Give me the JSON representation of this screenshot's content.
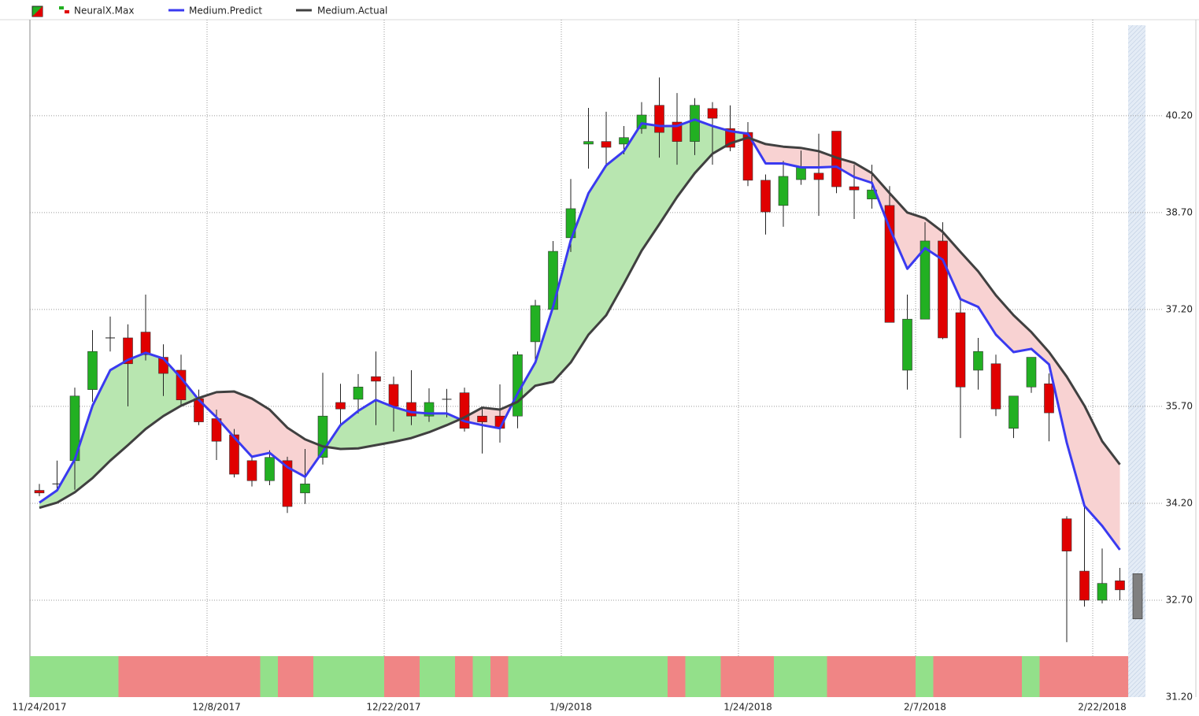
{
  "chart_data": {
    "type": "candlestick",
    "categories": [
      "11/24/2017",
      null,
      null,
      null,
      null,
      null,
      null,
      null,
      null,
      null,
      "12/8/2017",
      null,
      null,
      null,
      null,
      null,
      null,
      null,
      null,
      null,
      "12/22/2017",
      null,
      null,
      null,
      null,
      null,
      null,
      null,
      null,
      null,
      "1/9/2018",
      null,
      null,
      null,
      null,
      null,
      null,
      null,
      null,
      null,
      "1/24/2018",
      null,
      null,
      null,
      null,
      null,
      null,
      null,
      null,
      null,
      "2/7/2018",
      null,
      null,
      null,
      null,
      null,
      null,
      null,
      null,
      null,
      "2/22/2018",
      null,
      null
    ],
    "ylim": [
      31.2,
      41.6
    ],
    "yticks": [
      {
        "value": 31.2,
        "label": "31.20"
      },
      {
        "value": 32.7,
        "label": "32.70"
      },
      {
        "value": 34.2,
        "label": "34.20"
      },
      {
        "value": 35.7,
        "label": "35.70"
      },
      {
        "value": 37.2,
        "label": "37.20"
      },
      {
        "value": 38.7,
        "label": "38.70"
      },
      {
        "value": 40.2,
        "label": "40.20"
      }
    ],
    "grid": true,
    "series": [
      {
        "name": "NeuralX.Max",
        "up_color": "#22b022",
        "down_color": "#e00000",
        "forecast_color": "#808080",
        "open": [
          34.4,
          34.5,
          34.86,
          35.96,
          36.76,
          36.76,
          36.85,
          36.46,
          36.26,
          35.82,
          35.51,
          35.26,
          34.86,
          34.55,
          34.86,
          34.36,
          34.91,
          35.76,
          35.81,
          36.16,
          36.04,
          35.76,
          35.55,
          35.81,
          35.91,
          35.55,
          35.55,
          35.55,
          36.7,
          37.2,
          38.31,
          39.76,
          39.8,
          39.76,
          40.0,
          40.36,
          40.1,
          39.8,
          40.31,
          40.0,
          39.94,
          39.2,
          38.81,
          39.21,
          39.31,
          39.96,
          39.1,
          38.91,
          38.81,
          36.26,
          37.05,
          38.26,
          37.15,
          36.26,
          36.36,
          35.36,
          36.0,
          36.05,
          33.96,
          33.15,
          32.7,
          33.0,
          33.11
        ],
        "high": [
          34.5,
          34.86,
          35.99,
          36.88,
          37.09,
          36.97,
          37.43,
          36.66,
          36.5,
          35.96,
          35.65,
          35.35,
          34.92,
          35.02,
          34.92,
          35.04,
          36.22,
          36.05,
          36.2,
          36.55,
          36.16,
          36.26,
          35.98,
          35.97,
          35.99,
          35.68,
          36.04,
          36.55,
          37.35,
          38.26,
          39.22,
          40.32,
          40.26,
          40.04,
          40.41,
          40.79,
          40.55,
          40.47,
          40.41,
          40.36,
          40.1,
          39.29,
          39.5,
          39.66,
          39.92,
          39.96,
          39.44,
          39.44,
          39.11,
          37.43,
          38.55,
          38.55,
          37.36,
          36.76,
          36.5,
          35.86,
          36.46,
          36.21,
          34.0,
          34.2,
          33.5,
          33.2,
          33.11
        ],
        "low": [
          34.31,
          34.41,
          34.41,
          35.77,
          36.55,
          35.7,
          36.41,
          35.86,
          35.7,
          35.41,
          34.87,
          34.6,
          34.46,
          34.48,
          34.05,
          34.19,
          34.8,
          35.41,
          35.59,
          35.41,
          35.31,
          35.41,
          35.46,
          35.53,
          35.31,
          34.97,
          35.14,
          35.36,
          36.41,
          37.2,
          38.09,
          39.38,
          39.41,
          39.6,
          39.92,
          39.55,
          39.44,
          39.59,
          39.44,
          39.65,
          39.11,
          38.36,
          38.48,
          39.13,
          38.65,
          39.0,
          38.6,
          38.76,
          37.0,
          35.96,
          37.05,
          36.74,
          35.21,
          35.96,
          35.55,
          35.21,
          35.91,
          35.16,
          32.05,
          32.6,
          32.65,
          32.7,
          32.41
        ],
        "close": [
          34.36,
          34.5,
          35.86,
          36.55,
          36.76,
          36.36,
          36.5,
          36.21,
          35.8,
          35.46,
          35.16,
          34.65,
          34.55,
          34.91,
          34.15,
          34.5,
          35.55,
          35.66,
          36.0,
          36.09,
          35.7,
          35.55,
          35.76,
          35.81,
          35.36,
          35.46,
          35.36,
          36.5,
          37.26,
          38.1,
          38.76,
          39.8,
          39.71,
          39.86,
          40.21,
          39.94,
          39.8,
          40.36,
          40.16,
          39.71,
          39.2,
          38.71,
          39.26,
          39.41,
          39.21,
          39.1,
          39.05,
          39.05,
          37.0,
          37.05,
          38.26,
          36.76,
          36.0,
          36.55,
          35.66,
          35.86,
          36.46,
          35.6,
          33.46,
          32.7,
          32.96,
          32.86,
          32.41
        ]
      },
      {
        "name": "Medium.Predict",
        "color": "#3a3af0",
        "values": [
          34.21,
          34.4,
          34.88,
          35.71,
          36.26,
          36.42,
          36.53,
          36.44,
          36.14,
          35.8,
          35.53,
          35.22,
          34.92,
          34.98,
          34.76,
          34.61,
          35.0,
          35.41,
          35.63,
          35.8,
          35.69,
          35.61,
          35.59,
          35.59,
          35.47,
          35.41,
          35.36,
          35.9,
          36.38,
          37.24,
          38.27,
          39.0,
          39.43,
          39.65,
          40.08,
          40.04,
          40.04,
          40.14,
          40.04,
          39.96,
          39.92,
          39.46,
          39.46,
          39.4,
          39.4,
          39.41,
          39.25,
          39.16,
          38.46,
          37.83,
          38.15,
          37.97,
          37.36,
          37.24,
          36.81,
          36.54,
          36.59,
          36.35,
          35.14,
          34.16,
          33.85,
          33.48,
          null
        ]
      },
      {
        "name": "Medium.Actual",
        "color": "#404040",
        "values": [
          34.13,
          34.21,
          34.37,
          34.59,
          34.86,
          35.1,
          35.35,
          35.55,
          35.71,
          35.83,
          35.92,
          35.93,
          35.82,
          35.65,
          35.37,
          35.19,
          35.08,
          35.04,
          35.05,
          35.1,
          35.15,
          35.21,
          35.3,
          35.41,
          35.53,
          35.68,
          35.65,
          35.77,
          36.02,
          36.08,
          36.38,
          36.81,
          37.11,
          37.6,
          38.11,
          38.52,
          38.94,
          39.31,
          39.61,
          39.77,
          39.86,
          39.76,
          39.72,
          39.7,
          39.65,
          39.55,
          39.47,
          39.31,
          39.0,
          38.7,
          38.61,
          38.4,
          38.09,
          37.79,
          37.42,
          37.11,
          36.85,
          36.54,
          36.16,
          35.71,
          35.16,
          34.8,
          null
        ]
      }
    ],
    "band_colors": {
      "above": "#b8e6b0",
      "below": "#f8d2d2"
    },
    "signal_colors": [
      "#93e08a",
      "#93e08a",
      "#93e08a",
      "#93e08a",
      "#93e08a",
      "#f08585",
      "#f08585",
      "#f08585",
      "#f08585",
      "#f08585",
      "#f08585",
      "#f08585",
      "#f08585",
      "#93e08a",
      "#f08585",
      "#f08585",
      "#93e08a",
      "#93e08a",
      "#93e08a",
      "#93e08a",
      "#f08585",
      "#f08585",
      "#93e08a",
      "#93e08a",
      "#f08585",
      "#93e08a",
      "#f08585",
      "#93e08a",
      "#93e08a",
      "#93e08a",
      "#93e08a",
      "#93e08a",
      "#93e08a",
      "#93e08a",
      "#93e08a",
      "#93e08a",
      "#f08585",
      "#93e08a",
      "#93e08a",
      "#f08585",
      "#f08585",
      "#f08585",
      "#93e08a",
      "#93e08a",
      "#93e08a",
      "#f08585",
      "#f08585",
      "#f08585",
      "#f08585",
      "#f08585",
      "#93e08a",
      "#f08585",
      "#f08585",
      "#f08585",
      "#f08585",
      "#f08585",
      "#93e08a",
      "#f08585",
      "#f08585",
      "#f08585",
      "#f08585",
      "#f08585",
      null
    ]
  }
}
